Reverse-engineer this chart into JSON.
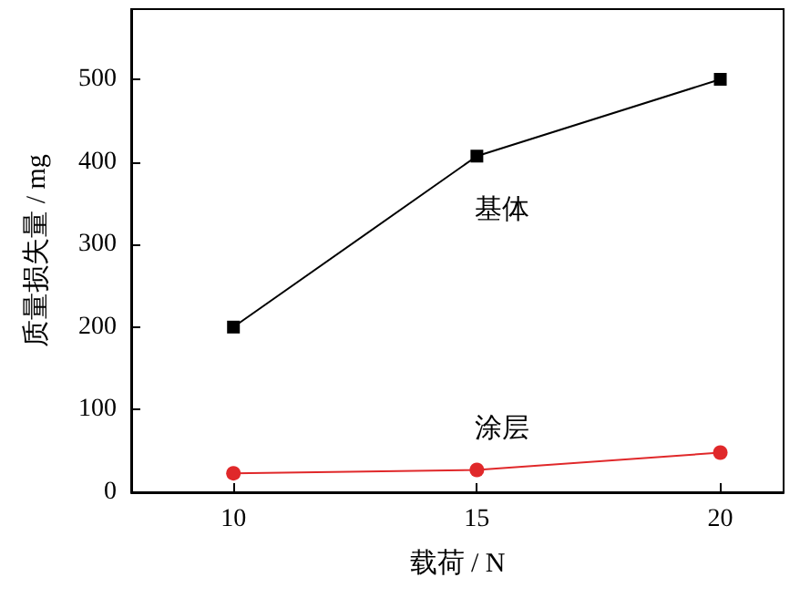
{
  "chart_data": {
    "type": "line",
    "xlabel": "载荷 / N",
    "ylabel": "质量损失量 / mg",
    "x": [
      10,
      15,
      20
    ],
    "series": [
      {
        "name": "基体",
        "color": "#000000",
        "marker": "square",
        "values": [
          200,
          407,
          500
        ]
      },
      {
        "name": "涂层",
        "color": "#e0282a",
        "marker": "circle",
        "values": [
          23,
          27,
          48
        ]
      }
    ],
    "xlim": [
      7.9,
      21.3
    ],
    "xticks": [
      10,
      15,
      20
    ],
    "ylim": [
      0,
      585
    ],
    "yticks": [
      0,
      100,
      200,
      300,
      400,
      500
    ],
    "grid": false,
    "line_style": "solid"
  }
}
